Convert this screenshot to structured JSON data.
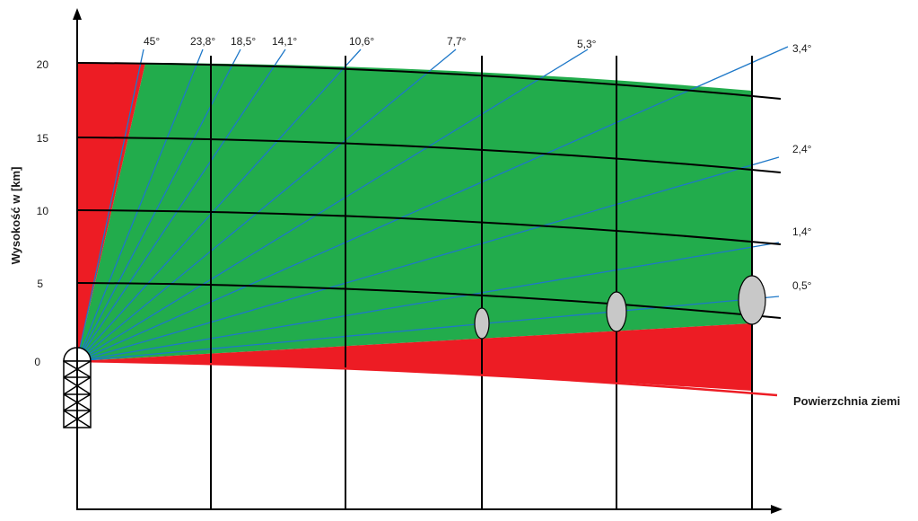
{
  "diagram": {
    "y_axis_label": "Wysokość w [km]",
    "ground_label": "Powierzchnia ziemi",
    "height_ticks": [
      "20",
      "15",
      "10",
      "5",
      "0"
    ],
    "beam_angles": [
      "45°",
      "23,8°",
      "18,5°",
      "14,1°",
      "10,6°",
      "7,7°",
      "5,3°",
      "3,4°",
      "2,4°",
      "1,4°",
      "0,5°"
    ],
    "colors": {
      "covered_area": "#22ac4c",
      "uncovered_area": "#ed1c24",
      "beam": "#1e78c8",
      "height_curve": "#000000",
      "ground_line": "#ed1c24",
      "beam_volume": "#c8c8c8"
    }
  }
}
